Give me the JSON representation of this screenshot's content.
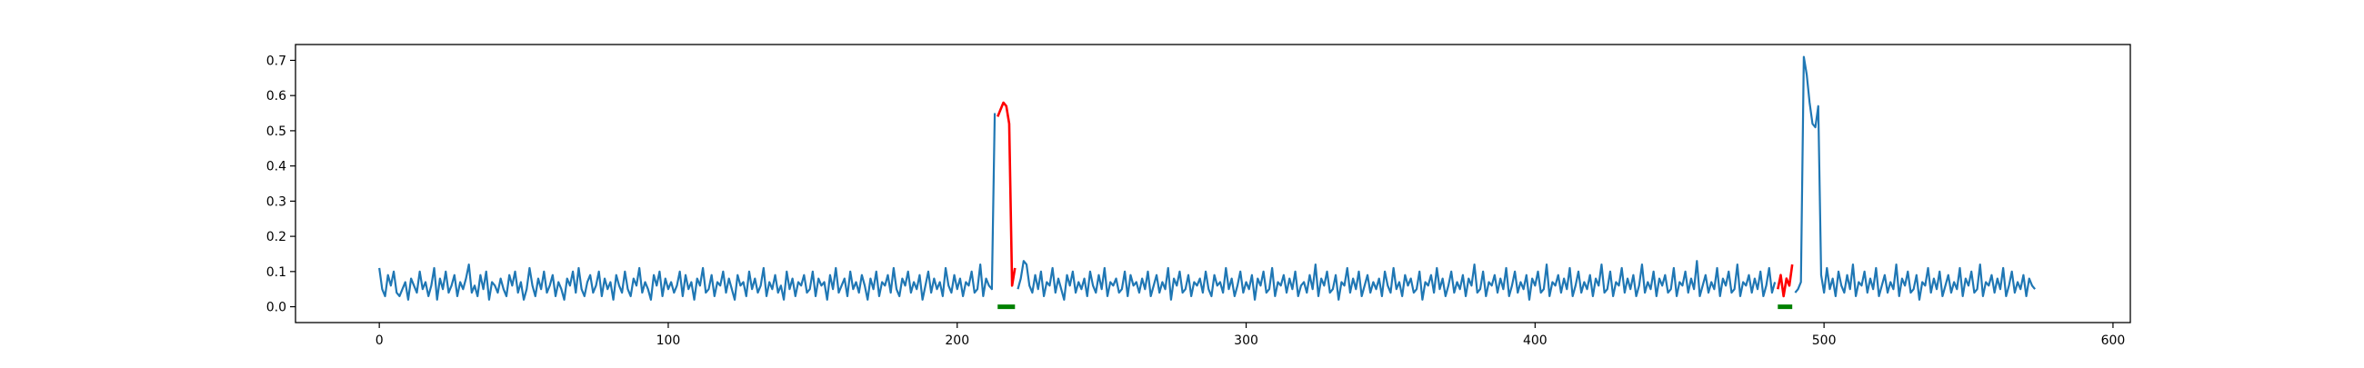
{
  "chart_data": {
    "type": "line",
    "title": "",
    "xlabel": "",
    "ylabel": "",
    "xlim": [
      -29,
      606
    ],
    "ylim": [
      -0.045,
      0.745
    ],
    "x_ticks": [
      0,
      100,
      200,
      300,
      400,
      500,
      600
    ],
    "y_ticks": [
      0.0,
      0.1,
      0.2,
      0.3,
      0.4,
      0.5,
      0.6,
      0.7
    ],
    "grid": false,
    "legend": "none",
    "colors": {
      "signal": "#1f77b4",
      "anomaly": "#ff0000",
      "marker": "#008000"
    },
    "series": [
      {
        "values": [
          0.11,
          0.05,
          0.03,
          0.09,
          0.06,
          0.1,
          0.04,
          0.03,
          0.05,
          0.07,
          0.02,
          0.08,
          0.06,
          0.04,
          0.1,
          0.05,
          0.07,
          0.03,
          0.06,
          0.11,
          0.02,
          0.08,
          0.05,
          0.1,
          0.04,
          0.06,
          0.09,
          0.03,
          0.07,
          0.05,
          0.08,
          0.12,
          0.04,
          0.06,
          0.03,
          0.09,
          0.05,
          0.1,
          0.02,
          0.07,
          0.06,
          0.04,
          0.08,
          0.05,
          0.03,
          0.09,
          0.06,
          0.1,
          0.04,
          0.07,
          0.02,
          0.05,
          0.11,
          0.06,
          0.03,
          0.08,
          0.05,
          0.1,
          0.04,
          0.06,
          0.09,
          0.03,
          0.07,
          0.05,
          0.02,
          0.08,
          0.06,
          0.1,
          0.04,
          0.11,
          0.05,
          0.03,
          0.07,
          0.09,
          0.04,
          0.06,
          0.1,
          0.03,
          0.08,
          0.05,
          0.07,
          0.02,
          0.09,
          0.06,
          0.04,
          0.1,
          0.05,
          0.03,
          0.08,
          0.06,
          0.11,
          0.04,
          0.07,
          0.05,
          0.02,
          0.09,
          0.06,
          0.1,
          0.03,
          0.08,
          0.05,
          0.07,
          0.04,
          0.06,
          0.1,
          0.03,
          0.09,
          0.05,
          0.07,
          0.02,
          0.08,
          0.06,
          0.11,
          0.04,
          0.05,
          0.09,
          0.03,
          0.07,
          0.06,
          0.1,
          0.04,
          0.08,
          0.05,
          0.02,
          0.09,
          0.06,
          0.07,
          0.03,
          0.1,
          0.05,
          0.08,
          0.04,
          0.06,
          0.11,
          0.03,
          0.07,
          0.05,
          0.09,
          0.04,
          0.06,
          0.02,
          0.1,
          0.05,
          0.08,
          0.03,
          0.07,
          0.06,
          0.09,
          0.04,
          0.05,
          0.1,
          0.03,
          0.08,
          0.06,
          0.07,
          0.02,
          0.09,
          0.05,
          0.11,
          0.04,
          0.06,
          0.08,
          0.03,
          0.1,
          0.05,
          0.07,
          0.04,
          0.09,
          0.06,
          0.02,
          0.08,
          0.05,
          0.1,
          0.03,
          0.07,
          0.06,
          0.09,
          0.04,
          0.11,
          0.05,
          0.03,
          0.08,
          0.06,
          0.1,
          0.04,
          0.07,
          0.05,
          0.09,
          0.02,
          0.06,
          0.1,
          0.04,
          0.08,
          0.05,
          0.07,
          0.03,
          0.11,
          0.06,
          0.04,
          0.09,
          0.05,
          0.08,
          0.03,
          0.07,
          0.06,
          0.1,
          0.04,
          0.05,
          0.12,
          0.03,
          0.08,
          0.06,
          0.05,
          0.55,
          0.54,
          0.56,
          0.58,
          0.57,
          0.52,
          0.06,
          0.11,
          0.05,
          0.08,
          0.13,
          0.12,
          0.06,
          0.04,
          0.09,
          0.05,
          0.1,
          0.03,
          0.07,
          0.06,
          0.11,
          0.04,
          0.08,
          0.05,
          0.02,
          0.09,
          0.06,
          0.1,
          0.04,
          0.07,
          0.05,
          0.08,
          0.03,
          0.1,
          0.06,
          0.04,
          0.09,
          0.05,
          0.11,
          0.03,
          0.07,
          0.06,
          0.08,
          0.04,
          0.05,
          0.1,
          0.03,
          0.09,
          0.06,
          0.07,
          0.04,
          0.08,
          0.05,
          0.1,
          0.03,
          0.06,
          0.09,
          0.04,
          0.07,
          0.05,
          0.11,
          0.02,
          0.08,
          0.06,
          0.1,
          0.04,
          0.05,
          0.09,
          0.03,
          0.07,
          0.06,
          0.08,
          0.04,
          0.1,
          0.05,
          0.03,
          0.09,
          0.06,
          0.07,
          0.04,
          0.11,
          0.05,
          0.08,
          0.03,
          0.06,
          0.1,
          0.04,
          0.07,
          0.05,
          0.09,
          0.02,
          0.08,
          0.06,
          0.1,
          0.04,
          0.05,
          0.11,
          0.03,
          0.07,
          0.06,
          0.09,
          0.04,
          0.08,
          0.05,
          0.1,
          0.03,
          0.06,
          0.07,
          0.04,
          0.09,
          0.05,
          0.12,
          0.03,
          0.08,
          0.06,
          0.1,
          0.04,
          0.05,
          0.09,
          0.02,
          0.07,
          0.06,
          0.11,
          0.04,
          0.08,
          0.05,
          0.1,
          0.03,
          0.06,
          0.09,
          0.04,
          0.07,
          0.05,
          0.08,
          0.03,
          0.1,
          0.06,
          0.04,
          0.11,
          0.05,
          0.07,
          0.03,
          0.09,
          0.06,
          0.08,
          0.04,
          0.05,
          0.1,
          0.02,
          0.07,
          0.06,
          0.09,
          0.04,
          0.11,
          0.05,
          0.08,
          0.03,
          0.06,
          0.1,
          0.04,
          0.07,
          0.05,
          0.09,
          0.03,
          0.08,
          0.06,
          0.12,
          0.04,
          0.05,
          0.1,
          0.03,
          0.07,
          0.06,
          0.09,
          0.04,
          0.08,
          0.05,
          0.11,
          0.03,
          0.06,
          0.1,
          0.04,
          0.07,
          0.05,
          0.09,
          0.02,
          0.08,
          0.06,
          0.1,
          0.04,
          0.05,
          0.12,
          0.03,
          0.07,
          0.06,
          0.09,
          0.04,
          0.08,
          0.05,
          0.11,
          0.03,
          0.06,
          0.1,
          0.04,
          0.07,
          0.05,
          0.09,
          0.03,
          0.08,
          0.06,
          0.12,
          0.04,
          0.05,
          0.1,
          0.03,
          0.07,
          0.06,
          0.11,
          0.04,
          0.08,
          0.05,
          0.09,
          0.03,
          0.06,
          0.12,
          0.04,
          0.07,
          0.05,
          0.1,
          0.03,
          0.08,
          0.06,
          0.09,
          0.04,
          0.05,
          0.11,
          0.03,
          0.07,
          0.06,
          0.1,
          0.04,
          0.08,
          0.05,
          0.13,
          0.03,
          0.06,
          0.09,
          0.04,
          0.07,
          0.05,
          0.11,
          0.03,
          0.08,
          0.06,
          0.1,
          0.04,
          0.05,
          0.12,
          0.03,
          0.07,
          0.06,
          0.09,
          0.04,
          0.08,
          0.05,
          0.1,
          0.03,
          0.06,
          0.11,
          0.04,
          0.07,
          0.05,
          0.09,
          0.03,
          0.08,
          0.06,
          0.12,
          0.04,
          0.05,
          0.07,
          0.71,
          0.66,
          0.58,
          0.52,
          0.51,
          0.57,
          0.09,
          0.04,
          0.11,
          0.05,
          0.08,
          0.03,
          0.1,
          0.06,
          0.04,
          0.09,
          0.05,
          0.12,
          0.03,
          0.07,
          0.06,
          0.1,
          0.04,
          0.08,
          0.05,
          0.11,
          0.03,
          0.06,
          0.09,
          0.04,
          0.07,
          0.05,
          0.12,
          0.03,
          0.08,
          0.06,
          0.1,
          0.04,
          0.05,
          0.09,
          0.02,
          0.07,
          0.06,
          0.11,
          0.04,
          0.08,
          0.05,
          0.1,
          0.03,
          0.06,
          0.09,
          0.04,
          0.07,
          0.05,
          0.11,
          0.03,
          0.08,
          0.06,
          0.1,
          0.04,
          0.05,
          0.12,
          0.03,
          0.07,
          0.06,
          0.09,
          0.04,
          0.08,
          0.05,
          0.11,
          0.03,
          0.06,
          0.1,
          0.04,
          0.07,
          0.05,
          0.09,
          0.03,
          0.08,
          0.06,
          0.05
        ],
        "anomaly_ranges": [
          [
            214,
            220
          ],
          [
            484,
            489
          ]
        ],
        "color": "#1f77b4",
        "anomaly_color": "#ff0000"
      }
    ],
    "markers": [
      {
        "x_start": 214,
        "x_end": 220,
        "y": 0.0,
        "color": "#008000"
      },
      {
        "x_start": 484,
        "x_end": 489,
        "y": 0.0,
        "color": "#008000"
      }
    ]
  }
}
